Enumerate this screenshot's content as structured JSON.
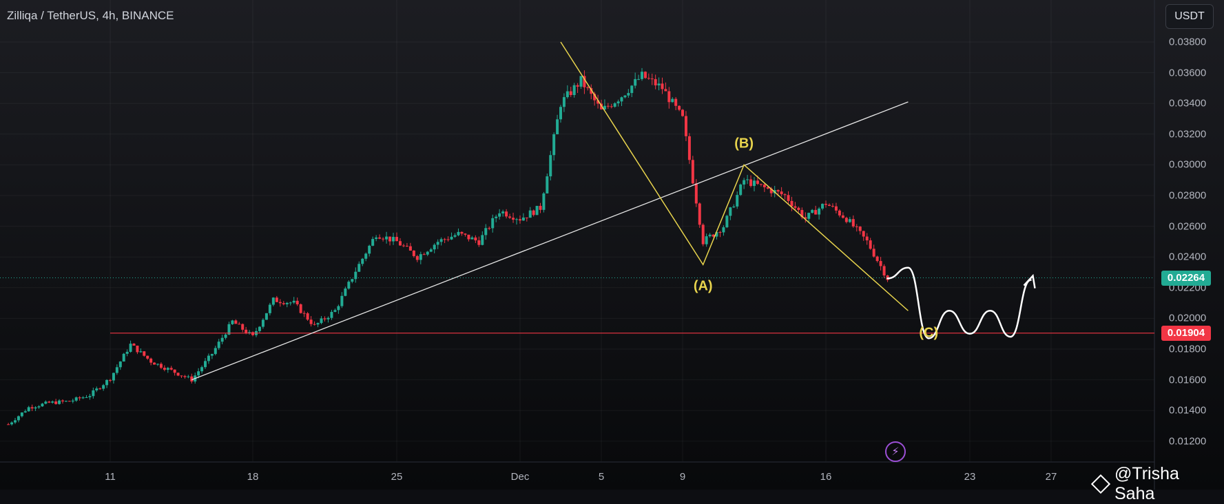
{
  "header": {
    "symbol_title": "Zilliqa / TetherUS, 4h, BINANCE",
    "currency": "USDT"
  },
  "y_ticks": [
    "0.03800",
    "0.03600",
    "0.03400",
    "0.03200",
    "0.03000",
    "0.02800",
    "0.02600",
    "0.02400",
    "0.02200",
    "0.02000",
    "0.01800",
    "0.01600",
    "0.01400",
    "0.01200"
  ],
  "x_ticks": [
    "11",
    "18",
    "25",
    "Dec",
    "5",
    "9",
    "16",
    "23",
    "27"
  ],
  "price_badges": [
    {
      "label": "0.02264",
      "value": 0.02264,
      "color": "#22ab94"
    },
    {
      "label": "0.01904",
      "value": 0.01904,
      "color": "#f23645"
    }
  ],
  "wave_labels": [
    "(A)",
    "(B)",
    "(C)"
  ],
  "watermark": "@Trisha Saha",
  "colors": {
    "up": "#22ab94",
    "down": "#f23645",
    "wave": "#e8d44d",
    "trendline": "#e6e6e6",
    "background": "#0d0e12"
  },
  "chart_data": {
    "type": "candlestick",
    "timeframe": "4h",
    "x_axis": "date",
    "ylim": [
      0.0112,
      0.0395
    ],
    "current_price": 0.02264,
    "horizontal_levels": [
      0.01904
    ],
    "close_path": [
      [
        "Nov 6",
        0.0131
      ],
      [
        "Nov 7",
        0.0142
      ],
      [
        "Nov 8",
        0.0145
      ],
      [
        "Nov 9",
        0.0146
      ],
      [
        "Nov 10",
        0.015
      ],
      [
        "Nov 11",
        0.0161
      ],
      [
        "Nov 12",
        0.0183
      ],
      [
        "Nov 13",
        0.0172
      ],
      [
        "Nov 14",
        0.0166
      ],
      [
        "Nov 15",
        0.016
      ],
      [
        "Nov 16",
        0.0177
      ],
      [
        "Nov 17",
        0.0198
      ],
      [
        "Nov 18",
        0.0188
      ],
      [
        "Nov 19",
        0.0212
      ],
      [
        "Nov 20",
        0.021
      ],
      [
        "Nov 21",
        0.0195
      ],
      [
        "Nov 22",
        0.0205
      ],
      [
        "Nov 23",
        0.0231
      ],
      [
        "Nov 24",
        0.0255
      ],
      [
        "Nov 25",
        0.025
      ],
      [
        "Nov 26",
        0.024
      ],
      [
        "Nov 27",
        0.025
      ],
      [
        "Nov 28",
        0.0255
      ],
      [
        "Nov 29",
        0.025
      ],
      [
        "Nov 30",
        0.027
      ],
      [
        "Dec 1",
        0.0265
      ],
      [
        "Dec 2",
        0.0272
      ],
      [
        "Dec 3",
        0.034
      ],
      [
        "Dec 4",
        0.0355
      ],
      [
        "Dec 5",
        0.0335
      ],
      [
        "Dec 6",
        0.0345
      ],
      [
        "Dec 7",
        0.0358
      ],
      [
        "Dec 8",
        0.035
      ],
      [
        "Dec 9",
        0.033
      ],
      [
        "Dec 10",
        0.025
      ],
      [
        "Dec 11",
        0.026
      ],
      [
        "Dec 12",
        0.029
      ],
      [
        "Dec 13",
        0.0285
      ],
      [
        "Dec 14",
        0.028
      ],
      [
        "Dec 15",
        0.0265
      ],
      [
        "Dec 16",
        0.0275
      ],
      [
        "Dec 17",
        0.0265
      ],
      [
        "Dec 18",
        0.025
      ],
      [
        "Dec 19",
        0.0226
      ]
    ],
    "trendline": {
      "from": [
        "Nov 15",
        0.016
      ],
      "to": [
        "Dec 20",
        0.0341
      ]
    },
    "level_line": {
      "from": [
        "Nov 11",
        0.01904
      ],
      "price": 0.01904
    },
    "abc_wave": [
      [
        "Dec 3",
        0.038
      ],
      [
        "Dec 10",
        0.0235
      ],
      [
        "Dec 12",
        0.03
      ],
      [
        "Dec 20",
        0.0205
      ]
    ],
    "projection_path": [
      [
        "Dec 19",
        0.0226
      ],
      [
        "Dec 20",
        0.0233
      ],
      [
        "Dec 21",
        0.0187
      ],
      [
        "Dec 22",
        0.0205
      ],
      [
        "Dec 23",
        0.019
      ],
      [
        "Dec 24",
        0.0205
      ],
      [
        "Dec 25",
        0.0188
      ],
      [
        "Dec 26",
        0.0225
      ]
    ]
  }
}
